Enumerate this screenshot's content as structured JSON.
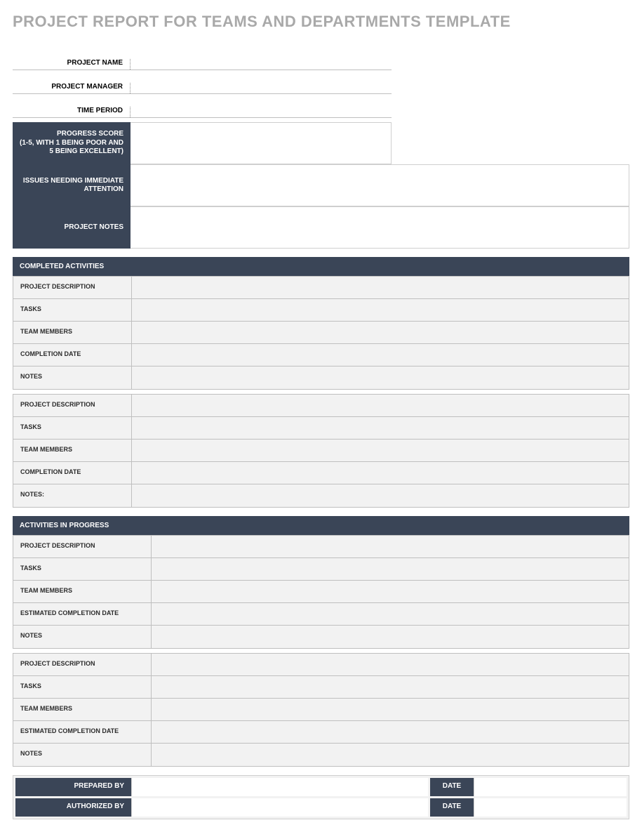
{
  "colors": {
    "dark_header": "#3a4557",
    "title_grey": "#a9a9a9",
    "cell_grey": "#f2f2f2",
    "border_grey": "#bfbfbf"
  },
  "title": "PROJECT REPORT FOR TEAMS AND DEPARTMENTS TEMPLATE",
  "meta": {
    "project_name": {
      "label": "PROJECT NAME",
      "value": ""
    },
    "project_manager": {
      "label": "PROJECT MANAGER",
      "value": ""
    },
    "time_period": {
      "label": "TIME PERIOD",
      "value": ""
    }
  },
  "top_blocks": {
    "progress_score": {
      "label": "PROGRESS SCORE\n(1-5, WITH 1 BEING POOR AND 5 BEING EXCELLENT)",
      "value": ""
    },
    "issues": {
      "label": "ISSUES NEEDING IMMEDIATE ATTENTION",
      "value": ""
    },
    "project_notes": {
      "label": "PROJECT NOTES",
      "value": ""
    }
  },
  "completed": {
    "header": "COMPLETED ACTIVITIES",
    "blocks": [
      {
        "project_description": {
          "label": "PROJECT DESCRIPTION",
          "value": ""
        },
        "tasks": {
          "label": "TASKS",
          "value": ""
        },
        "team_members": {
          "label": "TEAM MEMBERS",
          "value": ""
        },
        "completion_date": {
          "label": "COMPLETION DATE",
          "value": ""
        },
        "notes": {
          "label": "NOTES",
          "value": ""
        }
      },
      {
        "project_description": {
          "label": "PROJECT DESCRIPTION",
          "value": ""
        },
        "tasks": {
          "label": "TASKS",
          "value": ""
        },
        "team_members": {
          "label": "TEAM MEMBERS",
          "value": ""
        },
        "completion_date": {
          "label": "COMPLETION DATE",
          "value": ""
        },
        "notes": {
          "label": "NOTES:",
          "value": ""
        }
      }
    ]
  },
  "in_progress": {
    "header": "ACTIVITIES IN PROGRESS",
    "blocks": [
      {
        "project_description": {
          "label": "PROJECT DESCRIPTION",
          "value": ""
        },
        "tasks": {
          "label": "TASKS",
          "value": ""
        },
        "team_members": {
          "label": "TEAM MEMBERS",
          "value": ""
        },
        "est_completion_date": {
          "label": "ESTIMATED COMPLETION DATE",
          "value": ""
        },
        "notes": {
          "label": "NOTES",
          "value": ""
        }
      },
      {
        "project_description": {
          "label": "PROJECT DESCRIPTION",
          "value": ""
        },
        "tasks": {
          "label": "TASKS",
          "value": ""
        },
        "team_members": {
          "label": "TEAM MEMBERS",
          "value": ""
        },
        "est_completion_date": {
          "label": "ESTIMATED COMPLETION DATE",
          "value": ""
        },
        "notes": {
          "label": "NOTES",
          "value": ""
        }
      }
    ]
  },
  "signoff": {
    "prepared_by": {
      "label": "PREPARED BY",
      "value": "",
      "date_label": "DATE",
      "date_value": ""
    },
    "authorized_by": {
      "label": "AUTHORIZED BY",
      "value": "",
      "date_label": "DATE",
      "date_value": ""
    }
  }
}
